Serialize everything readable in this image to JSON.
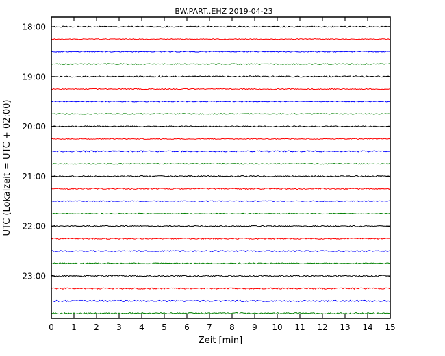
{
  "chart_data": {
    "type": "line",
    "subtype": "helicorder-dayplot",
    "title": "BW.PART..EHZ 2019-04-23",
    "xlabel": "Zeit  [min]",
    "ylabel": "UTC (Lokalzeit = UTC + 02:00)",
    "xlim": [
      0,
      15
    ],
    "x_ticks": [
      "0",
      "1",
      "2",
      "3",
      "4",
      "5",
      "6",
      "7",
      "8",
      "9",
      "10",
      "11",
      "12",
      "13",
      "14",
      "15"
    ],
    "hour_labels": [
      "18:00",
      "19:00",
      "20:00",
      "21:00",
      "22:00",
      "23:00"
    ],
    "traces_per_hour": 4,
    "trace_count": 24,
    "minutes_per_trace": 15,
    "trace_color_cycle": [
      "#000000",
      "#ff0000",
      "#0000ff",
      "#008000"
    ],
    "trace_start_times": [
      "18:00",
      "18:15",
      "18:30",
      "18:45",
      "19:00",
      "19:15",
      "19:30",
      "19:45",
      "20:00",
      "20:15",
      "20:30",
      "20:45",
      "21:00",
      "21:15",
      "21:30",
      "21:45",
      "22:00",
      "22:15",
      "22:30",
      "22:45",
      "23:00",
      "23:15",
      "23:30",
      "23:45"
    ],
    "grid": false,
    "legend": false,
    "description": "Helicorder-style seismogram: 24 quasi-flat low-amplitude noise traces, 15 minutes per line, line colors cycling black/red/blue/green, hour marks aligned with black traces"
  }
}
